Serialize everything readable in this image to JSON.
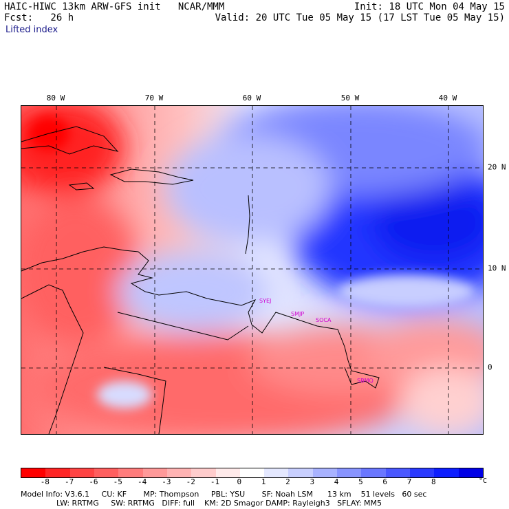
{
  "header": {
    "left_line1": "HAIC-HIWC 13km ARW-GFS init   NCAR/MMM",
    "left_line2": "Fcst:   26 h",
    "right_line1": "Init: 18 UTC Mon 04 May 15",
    "right_line2": "Valid: 20 UTC Tue 05 May 15 (17 LST Tue 05 May 15)",
    "field": "Lifted index"
  },
  "map": {
    "lon_labels": [
      "80 W",
      "70 W",
      "60 W",
      "50 W",
      "40 W"
    ],
    "lat_labels": [
      "20 N",
      "10 N",
      "0"
    ],
    "stations": [
      "SYEJ",
      "SMJP",
      "SOCA",
      "SBMQ"
    ]
  },
  "legend": {
    "ticks": [
      "-8",
      "-7",
      "-6",
      "-5",
      "-4",
      "-3",
      "-2",
      "-1",
      "0",
      "1",
      "2",
      "3",
      "4",
      "5",
      "6",
      "7",
      "8"
    ],
    "unit": "°C",
    "colors": [
      "#ff0000",
      "#ff2525",
      "#ff4444",
      "#ff5f5f",
      "#ff7c7c",
      "#ff9999",
      "#ffb3b3",
      "#ffcccc",
      "#ffeaea",
      "#ffffff",
      "#e4e8ff",
      "#c8cfff",
      "#a8b2ff",
      "#8894ff",
      "#6a77ff",
      "#4a58ff",
      "#2a3aff",
      "#0d1eff",
      "#0000e6"
    ]
  },
  "model_info": {
    "line1": "Model Info: V3.6.1     CU: KF       MP: Thompson     PBL: YSU       SF: Noah LSM      13 km    51 levels   60 sec",
    "line2": "LW: RRTMG     SW: RRTMG   DIFF: full    KM: 2D Smagor DAMP: Rayleigh3   SFLAY: MM5"
  }
}
